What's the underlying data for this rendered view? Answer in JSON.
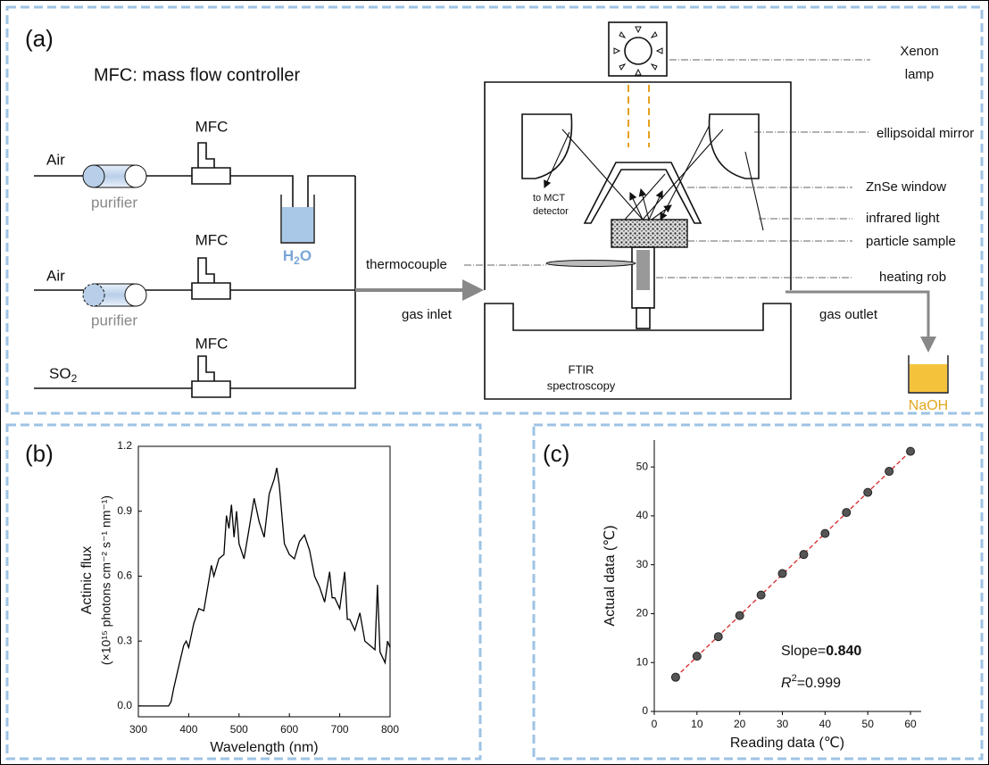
{
  "diagram": {
    "panel_label": "(a)",
    "note": "MFC: mass flow controller",
    "inputs": [
      {
        "gas": "Air",
        "purifier": "purifier",
        "controller": "MFC"
      },
      {
        "gas": "Air",
        "purifier": "purifier",
        "controller": "MFC"
      },
      {
        "gas": "SO",
        "gas_subscript": "2",
        "controller": "MFC"
      }
    ],
    "water": {
      "symbol": "H",
      "subscript": "2",
      "rest": "O"
    },
    "thermocouple": "thermocouple",
    "gas_inlet": "gas inlet",
    "gas_outlet": "gas outlet",
    "detector": [
      "to MCT",
      "detector"
    ],
    "instrument": [
      "FTIR",
      "spectroscopy"
    ],
    "lamp": [
      "Xenon",
      "lamp"
    ],
    "mirror": "ellipsoidal mirror",
    "window": "ZnSe window",
    "light": "infrared light",
    "sample": "particle sample",
    "heater": "heating rob",
    "absorber": "NaOH"
  },
  "chart_data": [
    {
      "type": "line",
      "panel_label": "(b)",
      "xlabel": "Wavelength (nm)",
      "ylabel": [
        "Actinic flux",
        "(×10¹⁵ photons cm⁻² s⁻¹ nm⁻¹)"
      ],
      "x": [
        300,
        320,
        340,
        360,
        365,
        370,
        380,
        390,
        395,
        400,
        410,
        420,
        430,
        440,
        445,
        450,
        460,
        470,
        475,
        480,
        485,
        490,
        495,
        500,
        510,
        520,
        530,
        540,
        550,
        560,
        570,
        575,
        580,
        590,
        600,
        610,
        620,
        630,
        640,
        650,
        660,
        670,
        680,
        685,
        690,
        700,
        710,
        715,
        720,
        730,
        740,
        750,
        760,
        770,
        775,
        780,
        790,
        795,
        800
      ],
      "values": [
        0,
        0,
        0,
        0,
        0.02,
        0.08,
        0.18,
        0.28,
        0.3,
        0.27,
        0.38,
        0.45,
        0.44,
        0.58,
        0.65,
        0.6,
        0.68,
        0.7,
        0.88,
        0.82,
        0.93,
        0.78,
        0.9,
        0.75,
        0.68,
        0.82,
        0.96,
        0.85,
        0.78,
        0.98,
        1.05,
        1.1,
        1.02,
        0.75,
        0.7,
        0.68,
        0.76,
        0.79,
        0.72,
        0.6,
        0.55,
        0.48,
        0.62,
        0.5,
        0.5,
        0.45,
        0.62,
        0.4,
        0.4,
        0.35,
        0.43,
        0.3,
        0.28,
        0.26,
        0.56,
        0.25,
        0.2,
        0.3,
        0.27
      ],
      "color": "#000000",
      "xlim": [
        300,
        800
      ],
      "xticks": [
        300,
        400,
        500,
        600,
        700,
        800
      ],
      "ylim": [
        -0.05,
        1.2
      ],
      "yticks": [
        {
          "value": 0,
          "label": "0.0"
        },
        0.3,
        0.6,
        0.9,
        1.2
      ]
    },
    {
      "type": "scatter",
      "panel_label": "(c)",
      "xlabel": "Reading data (℃)",
      "ylabel": "Actual data (℃)",
      "x": [
        5,
        10,
        15,
        20,
        25,
        30,
        35,
        40,
        45,
        50,
        55,
        60
      ],
      "values": [
        7,
        11.3,
        15.3,
        19.6,
        23.8,
        28.2,
        32.1,
        36.4,
        40.7,
        44.8,
        49.1,
        53.2
      ],
      "color": "#555555",
      "fit_color": "#d62728",
      "xlim": [
        0,
        62.5
      ],
      "xticks": [
        0,
        10,
        20,
        30,
        40,
        50,
        60
      ],
      "ylim": [
        0,
        55.5
      ],
      "yticks": [
        0,
        10,
        20,
        30,
        40,
        50
      ],
      "annotations": {
        "slope_label": "Slope=",
        "slope_value": "0.840",
        "r_symbol": "R",
        "r_power": "2",
        "r_value": "=0.999"
      }
    }
  ]
}
